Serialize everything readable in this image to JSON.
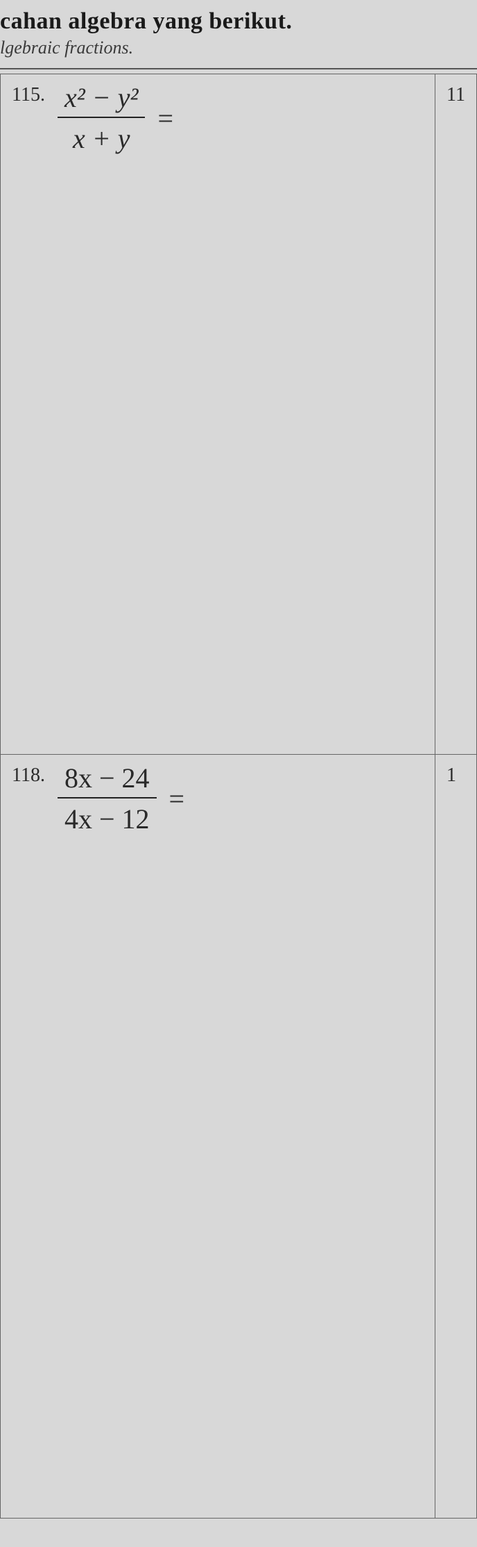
{
  "header": {
    "title_line1": "cahan algebra yang berikut.",
    "title_line2": "lgebraic fractions."
  },
  "problems": {
    "p115": {
      "number": "115.",
      "numerator": "x² − y²",
      "denominator": "x + y",
      "equals": "="
    },
    "p118": {
      "number": "118.",
      "numerator": "8x − 24",
      "denominator": "4x − 12",
      "equals": "="
    },
    "side1": "11",
    "side2": "1"
  },
  "style": {
    "background_color": "#d8d8d8",
    "border_color": "#666666",
    "text_color": "#2a2a2a",
    "title_fontsize": 34,
    "subtitle_fontsize": 26,
    "qnum_fontsize": 28,
    "math_fontsize": 40
  }
}
